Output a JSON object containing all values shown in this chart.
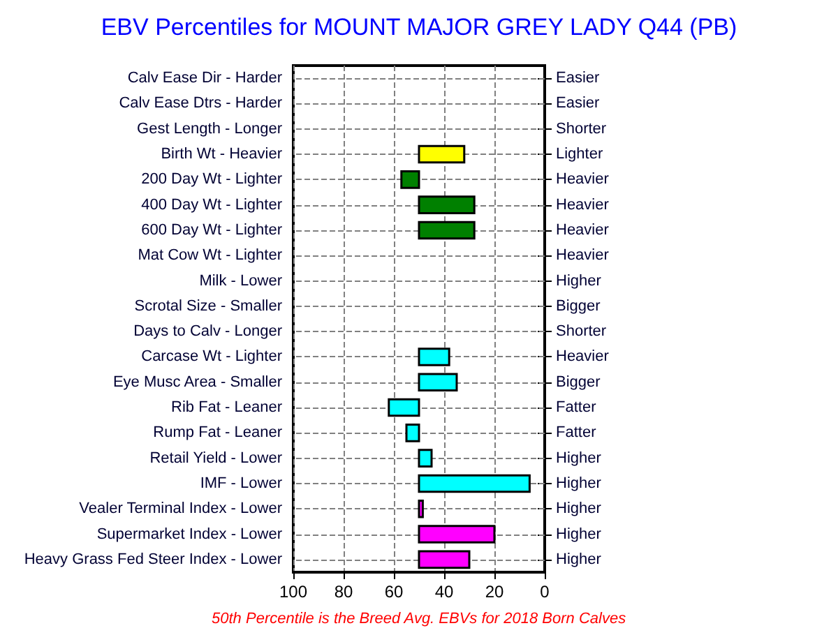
{
  "chart_data": {
    "type": "bar",
    "orientation": "horizontal",
    "title": "EBV Percentiles for MOUNT MAJOR GREY LADY Q44 (PB)",
    "categories": [
      "Calv Ease Dir - Harder",
      "Calv Ease Dtrs - Harder",
      "Gest Length - Longer",
      "Birth Wt - Heavier",
      "200 Day Wt - Lighter",
      "400 Day Wt - Lighter",
      "600 Day Wt - Lighter",
      "Mat Cow Wt - Lighter",
      "Milk - Lower",
      "Scrotal Size - Smaller",
      "Days to Calv - Longer",
      "Carcase Wt - Lighter",
      "Eye Musc Area - Smaller",
      "Rib Fat - Leaner",
      "Rump Fat - Leaner",
      "Retail Yield - Lower",
      "IMF - Lower",
      "Vealer Terminal Index - Lower",
      "Supermarket Index - Lower",
      "Heavy Grass Fed Steer Index - Lower"
    ],
    "y2_categories": [
      "Easier",
      "Easier",
      "Shorter",
      "Lighter",
      "Heavier",
      "Heavier",
      "Heavier",
      "Heavier",
      "Higher",
      "Bigger",
      "Shorter",
      "Heavier",
      "Bigger",
      "Fatter",
      "Fatter",
      "Higher",
      "Higher",
      "Higher",
      "Higher",
      "Higher"
    ],
    "values": [
      null,
      null,
      null,
      -18,
      7,
      -22,
      -22,
      null,
      null,
      null,
      null,
      -12,
      -15,
      12,
      5,
      -5,
      -44,
      -1.5,
      -30,
      -20
    ],
    "base": [
      null,
      null,
      null,
      50,
      50,
      50,
      50,
      null,
      null,
      null,
      null,
      50,
      50,
      50,
      50,
      50,
      50,
      50,
      50,
      50
    ],
    "colors": [
      "#ffff00",
      "#ffff00",
      "#ffff00",
      "#ffff00",
      "#008000",
      "#008000",
      "#008000",
      "#008000",
      "#00ffff",
      "#00ffff",
      "#00ffff",
      "#00ffff",
      "#00ffff",
      "#00ffff",
      "#00ffff",
      "#00ffff",
      "#00ffff",
      "#ff00ff",
      "#ff00ff",
      "#ff00ff"
    ],
    "xlim": [
      100,
      0
    ],
    "xticks": [
      100,
      80,
      60,
      40,
      20,
      0
    ],
    "grid": true,
    "annotations": [
      "50th Percentile is the Breed Avg. EBVs for 2018 Born Calves"
    ]
  }
}
